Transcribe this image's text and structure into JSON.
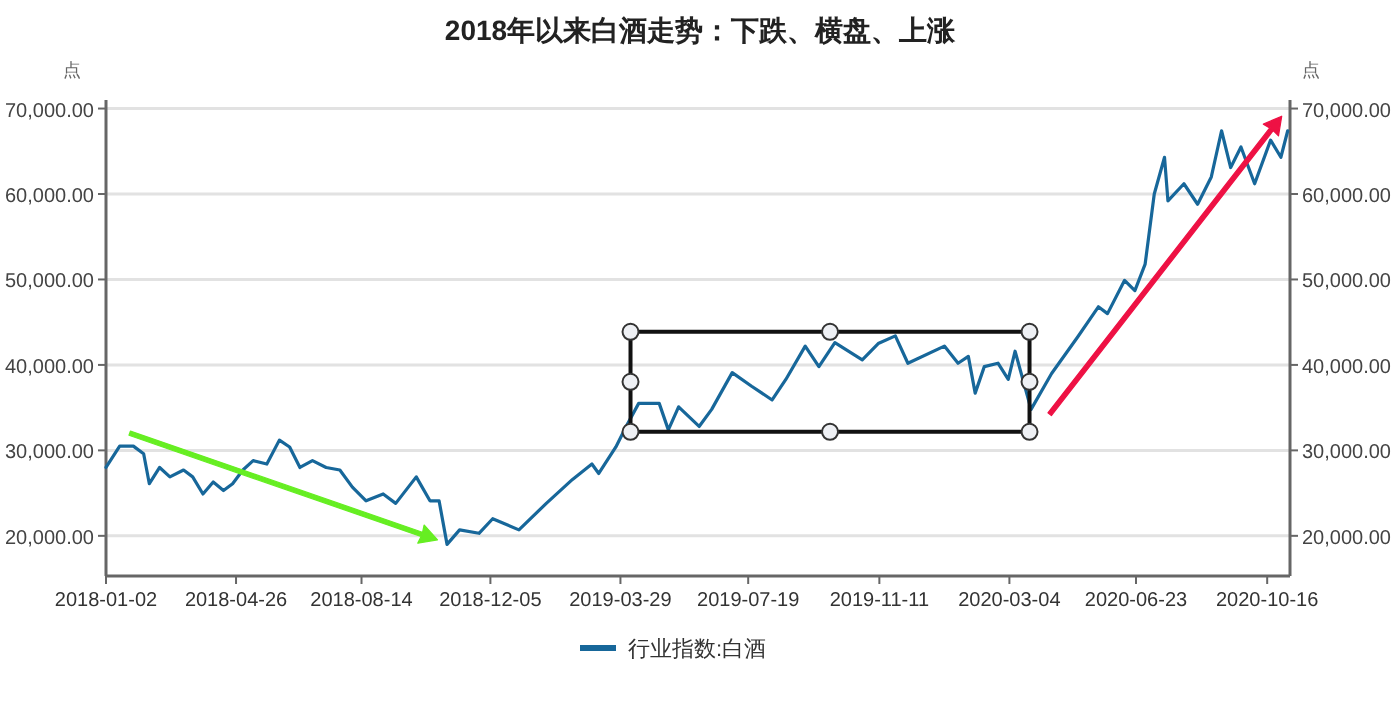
{
  "chart_data": {
    "type": "line",
    "title": "2018年以来白酒走势：下跌、横盘、上涨",
    "ylabel": "点",
    "y2label": "点",
    "x": [
      "2018-01-02",
      "2018-01-14",
      "2018-01-26",
      "2018-02-04",
      "2018-02-09",
      "2018-02-18",
      "2018-02-27",
      "2018-03-11",
      "2018-03-19",
      "2018-03-28",
      "2018-04-06",
      "2018-04-15",
      "2018-04-23",
      "2018-05-02",
      "2018-05-11",
      "2018-05-23",
      "2018-06-03",
      "2018-06-12",
      "2018-06-21",
      "2018-07-02",
      "2018-07-14",
      "2018-07-26",
      "2018-08-06",
      "2018-08-18",
      "2018-09-02",
      "2018-09-13",
      "2018-10-01",
      "2018-10-13",
      "2018-10-21",
      "2018-10-28",
      "2018-11-08",
      "2018-11-25",
      "2018-12-07",
      "2018-12-30",
      "2019-01-23",
      "2019-02-15",
      "2019-03-04",
      "2019-03-10",
      "2019-03-25",
      "2019-04-03",
      "2019-04-14",
      "2019-05-02",
      "2019-05-10",
      "2019-05-19",
      "2019-06-06",
      "2019-06-17",
      "2019-07-05",
      "2019-07-22",
      "2019-08-09",
      "2019-08-21",
      "2019-09-07",
      "2019-09-19",
      "2019-10-03",
      "2019-10-27",
      "2019-11-10",
      "2019-11-25",
      "2019-12-06",
      "2020-01-07",
      "2020-01-19",
      "2020-01-28",
      "2020-02-03",
      "2020-02-11",
      "2020-02-23",
      "2020-03-03",
      "2020-03-09",
      "2020-03-23",
      "2020-04-10",
      "2020-05-03",
      "2020-05-21",
      "2020-05-29",
      "2020-06-13",
      "2020-06-22",
      "2020-07-01",
      "2020-07-09",
      "2020-07-18",
      "2020-07-21",
      "2020-08-04",
      "2020-08-16",
      "2020-08-28",
      "2020-09-06",
      "2020-09-14",
      "2020-09-23",
      "2020-10-05",
      "2020-10-19",
      "2020-10-28",
      "2020-11-03"
    ],
    "series": [
      {
        "name": "行业指数:白酒",
        "color": "#17679a",
        "values": [
          28000,
          30500,
          30500,
          29600,
          26100,
          28000,
          26900,
          27700,
          26900,
          24900,
          26300,
          25300,
          26100,
          27700,
          28800,
          28400,
          31200,
          30400,
          28000,
          28800,
          28000,
          27700,
          25700,
          24100,
          24900,
          23800,
          26900,
          24100,
          24100,
          19000,
          20700,
          20300,
          22000,
          20700,
          23800,
          26600,
          28400,
          27300,
          30400,
          32800,
          35500,
          35500,
          32400,
          35100,
          32800,
          34800,
          39100,
          37500,
          35900,
          38300,
          42200,
          39800,
          42600,
          40600,
          42500,
          43400,
          40200,
          42200,
          40200,
          41000,
          36700,
          39800,
          40200,
          38300,
          41600,
          34800,
          39000,
          43300,
          46800,
          46000,
          49900,
          48700,
          51800,
          60000,
          64300,
          59200,
          61200,
          58800,
          62000,
          67400,
          63100,
          65500,
          61200,
          66300,
          64300,
          67400
        ]
      }
    ],
    "xlim": [
      "2018-01-02",
      "2020-11-05"
    ],
    "xticks": [
      "2018-01-02",
      "2018-04-26",
      "2018-08-14",
      "2018-12-05",
      "2019-03-29",
      "2019-07-19",
      "2019-11-11",
      "2020-03-04",
      "2020-06-23",
      "2020-10-16"
    ],
    "ylim": [
      15300,
      71000
    ],
    "yticks": [
      {
        "value": 20000,
        "label": "20,000.00"
      },
      {
        "value": 30000,
        "label": "30,000.00"
      },
      {
        "value": 40000,
        "label": "40,000.00"
      },
      {
        "value": 50000,
        "label": "50,000.00"
      },
      {
        "value": 60000,
        "label": "60,000.00"
      },
      {
        "value": 70000,
        "label": "70,000.00"
      }
    ],
    "y2lim": [
      15300,
      71000
    ],
    "y2ticks": [
      {
        "value": 20000,
        "label": "20,000.00"
      },
      {
        "value": 30000,
        "label": "30,000.00"
      },
      {
        "value": 40000,
        "label": "40,000.00"
      },
      {
        "value": 50000,
        "label": "50,000.00"
      },
      {
        "value": 60000,
        "label": "60,000.00"
      },
      {
        "value": 70000,
        "label": "70,000.00"
      }
    ],
    "grid": "y",
    "legend": "bottom"
  }
}
